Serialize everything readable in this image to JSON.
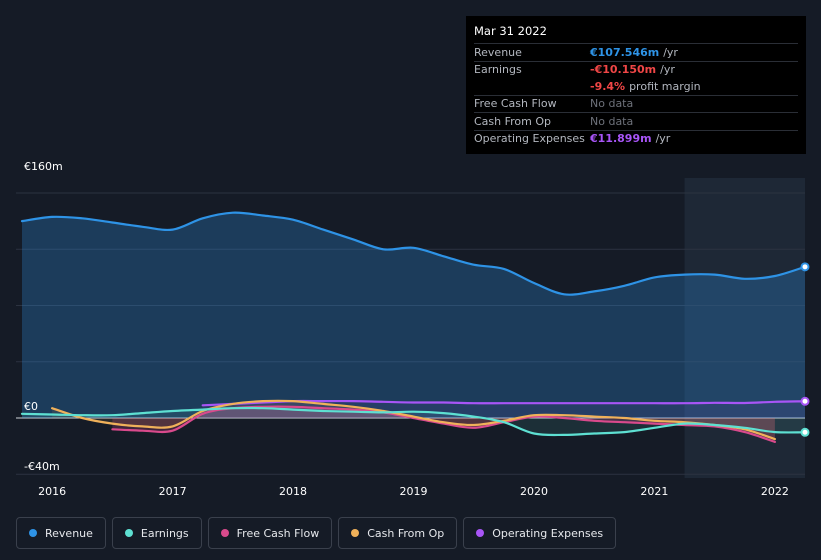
{
  "tooltip": {
    "date": "Mar 31 2022",
    "rows": [
      {
        "label": "Revenue",
        "value": "€107.546m",
        "unit": "/yr",
        "color": "#2e93e6"
      },
      {
        "label": "Earnings",
        "value": "-€10.150m",
        "unit": "/yr",
        "color": "#f04646"
      },
      {
        "label": "",
        "value": "-9.4%",
        "unit": "profit margin",
        "color": "#f04646"
      },
      {
        "label": "Free Cash Flow",
        "value": "No data"
      },
      {
        "label": "Cash From Op",
        "value": "No data"
      },
      {
        "label": "Operating Expenses",
        "value": "€11.899m",
        "unit": "/yr",
        "color": "#a855f7"
      }
    ]
  },
  "chart_data": {
    "type": "line",
    "title": "",
    "y_ticks": [
      "€160m",
      "€0",
      "-€40m"
    ],
    "ylim": [
      -40,
      160
    ],
    "xlim": [
      2015.7,
      2022.25
    ],
    "x_ticks": [
      2016,
      2017,
      2018,
      2019,
      2020,
      2021,
      2022
    ],
    "x_tick_labels": [
      "2016",
      "2017",
      "2018",
      "2019",
      "2020",
      "2021",
      "2022"
    ],
    "forecast_start": 2021.25,
    "series": [
      {
        "name": "Revenue",
        "color": "#2e93e6",
        "fill": true,
        "x": [
          2015.75,
          2016.0,
          2016.25,
          2016.5,
          2016.75,
          2017.0,
          2017.25,
          2017.5,
          2017.75,
          2018.0,
          2018.25,
          2018.5,
          2018.75,
          2019.0,
          2019.25,
          2019.5,
          2019.75,
          2020.0,
          2020.25,
          2020.5,
          2020.75,
          2021.0,
          2021.25,
          2021.5,
          2021.75,
          2022.0,
          2022.25
        ],
        "y": [
          140,
          143,
          142,
          139,
          136,
          134,
          142,
          146,
          144,
          141,
          134,
          127,
          120,
          121,
          115,
          109,
          106,
          96,
          88,
          90,
          94,
          100,
          102,
          102,
          99,
          101,
          107.5
        ]
      },
      {
        "name": "Earnings",
        "color": "#5ee0d2",
        "x": [
          2015.75,
          2016.0,
          2016.25,
          2016.5,
          2016.75,
          2017.0,
          2017.25,
          2017.5,
          2017.75,
          2018.0,
          2018.25,
          2018.5,
          2018.75,
          2019.0,
          2019.25,
          2019.5,
          2019.75,
          2020.0,
          2020.25,
          2020.5,
          2020.75,
          2021.0,
          2021.25,
          2021.5,
          2021.75,
          2022.0,
          2022.25
        ],
        "y": [
          3,
          2.5,
          2,
          2,
          3.5,
          5,
          6,
          7,
          7,
          6,
          5,
          4.5,
          4,
          4.5,
          3.5,
          1,
          -3,
          -11,
          -12,
          -11,
          -10,
          -7,
          -4,
          -5,
          -7,
          -10,
          -10.15
        ]
      },
      {
        "name": "Free Cash Flow",
        "color": "#d94a8c",
        "x": [
          2016.5,
          2016.75,
          2017.0,
          2017.25,
          2017.5,
          2017.75,
          2018.0,
          2018.25,
          2018.5,
          2018.75,
          2019.0,
          2019.25,
          2019.5,
          2019.75,
          2020.0,
          2020.25,
          2020.5,
          2020.75,
          2021.0,
          2021.25,
          2021.5,
          2021.75,
          2022.0
        ],
        "y": [
          -8,
          -9,
          -9,
          3,
          7,
          8,
          8,
          7,
          6,
          4,
          0,
          -4,
          -7,
          -3,
          1,
          0,
          -2,
          -3,
          -4,
          -5,
          -6,
          -10,
          -17
        ]
      },
      {
        "name": "Cash From Op",
        "color": "#f0b15a",
        "x": [
          2016.0,
          2016.25,
          2016.5,
          2016.75,
          2017.0,
          2017.25,
          2017.5,
          2017.75,
          2018.0,
          2018.25,
          2018.5,
          2018.75,
          2019.0,
          2019.25,
          2019.5,
          2019.75,
          2020.0,
          2020.25,
          2020.5,
          2020.75,
          2021.0,
          2021.25,
          2021.5,
          2021.75,
          2022.0
        ],
        "y": [
          7,
          0,
          -4,
          -6,
          -6,
          5,
          10,
          12,
          12,
          10,
          8,
          5,
          1,
          -3,
          -5,
          -2,
          2,
          2,
          1,
          0,
          -2,
          -3,
          -5,
          -8,
          -15
        ]
      },
      {
        "name": "Operating Expenses",
        "color": "#a855f7",
        "x": [
          2017.25,
          2017.5,
          2017.75,
          2018.0,
          2018.25,
          2018.5,
          2018.75,
          2019.0,
          2019.25,
          2019.5,
          2019.75,
          2020.0,
          2020.25,
          2020.5,
          2020.75,
          2021.0,
          2021.25,
          2021.5,
          2021.75,
          2022.0,
          2022.25
        ],
        "y": [
          9,
          10,
          11,
          12,
          12,
          12,
          11.5,
          11,
          11,
          10.5,
          10.5,
          10.5,
          10.5,
          10.5,
          10.5,
          10.5,
          10.5,
          10.8,
          10.7,
          11.5,
          11.899
        ]
      }
    ]
  },
  "legend": [
    {
      "label": "Revenue",
      "color": "#2e93e6"
    },
    {
      "label": "Earnings",
      "color": "#5ee0d2"
    },
    {
      "label": "Free Cash Flow",
      "color": "#d94a8c"
    },
    {
      "label": "Cash From Op",
      "color": "#f0b15a"
    },
    {
      "label": "Operating Expenses",
      "color": "#a855f7"
    }
  ]
}
